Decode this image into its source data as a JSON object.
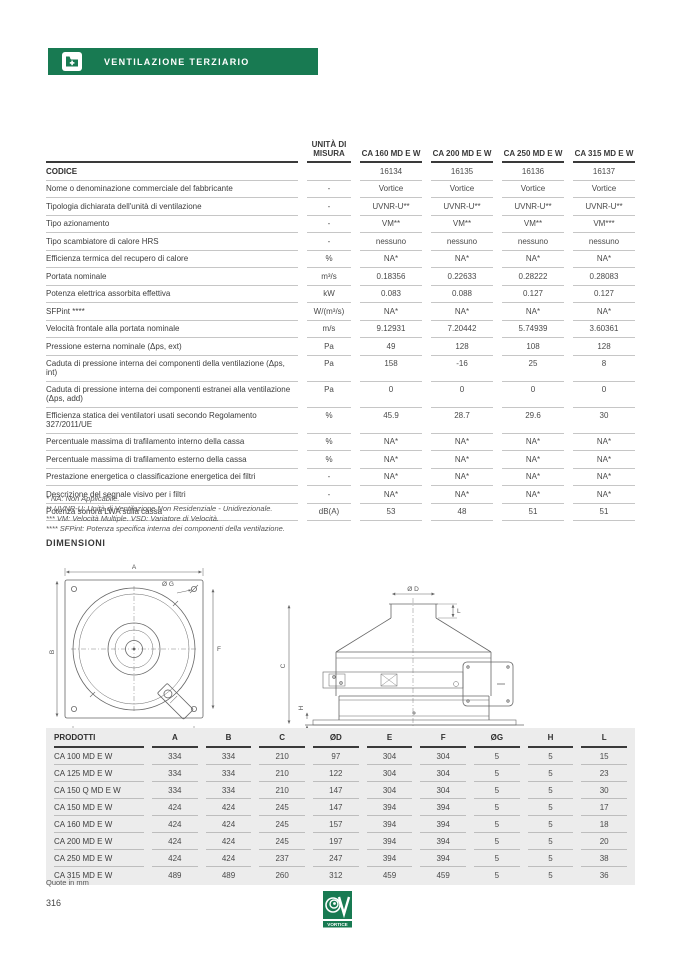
{
  "page": {
    "banner": {
      "title": "VENTILAZIONE TERZIARIO",
      "color": "#187a52"
    },
    "page_number": "316",
    "quote_note": "Quote in mm",
    "brand": "VORTICE"
  },
  "spec_table": {
    "unit_header": "UNITÀ DI MISURA",
    "products": [
      "CA 160 MD E W",
      "CA 200 MD E W",
      "CA 250 MD E W",
      "CA 315 MD E W"
    ],
    "rows": [
      {
        "label": "CODICE",
        "bold": true,
        "unit": "",
        "values": [
          "16134",
          "16135",
          "16136",
          "16137"
        ]
      },
      {
        "label": "Nome o denominazione commerciale del fabbricante",
        "unit": "-",
        "values": [
          "Vortice",
          "Vortice",
          "Vortice",
          "Vortice"
        ]
      },
      {
        "label": "Tipologia dichiarata dell'unità di ventilazione",
        "unit": "-",
        "values": [
          "UVNR-U**",
          "UVNR-U**",
          "UVNR-U**",
          "UVNR-U**"
        ]
      },
      {
        "label": "Tipo azionamento",
        "unit": "-",
        "values": [
          "VM**",
          "VM**",
          "VM**",
          "VM***"
        ]
      },
      {
        "label": "Tipo scambiatore di calore HRS",
        "unit": "-",
        "values": [
          "nessuno",
          "nessuno",
          "nessuno",
          "nessuno"
        ]
      },
      {
        "label": "Efficienza termica del recupero di calore",
        "unit": "%",
        "values": [
          "NA*",
          "NA*",
          "NA*",
          "NA*"
        ]
      },
      {
        "label": "Portata nominale",
        "unit": "m³/s",
        "values": [
          "0.18356",
          "0.22633",
          "0.28222",
          "0.28083"
        ]
      },
      {
        "label": "Potenza elettrica assorbita effettiva",
        "unit": "kW",
        "values": [
          "0.083",
          "0.088",
          "0.127",
          "0.127"
        ]
      },
      {
        "label": "SFPint ****",
        "unit": "W/(m³/s)",
        "values": [
          "NA*",
          "NA*",
          "NA*",
          "NA*"
        ]
      },
      {
        "label": "Velocità frontale alla portata nominale",
        "unit": "m/s",
        "values": [
          "9.12931",
          "7.20442",
          "5.74939",
          "3.60361"
        ]
      },
      {
        "label": "Pressione esterna nominale (Δps, ext)",
        "unit": "Pa",
        "values": [
          "49",
          "128",
          "108",
          "128"
        ]
      },
      {
        "label": "Caduta di pressione interna dei componenti della ventilazione (Δps, int)",
        "unit": "Pa",
        "values": [
          "158",
          "-16",
          "25",
          "8"
        ]
      },
      {
        "label": "Caduta di pressione interna dei componenti estranei alla  ventilazione (Δps, add)",
        "unit": "Pa",
        "values": [
          "0",
          "0",
          "0",
          "0"
        ]
      },
      {
        "label": "Efficienza statica dei ventilatori usati secondo Regolamento 327/2011/UE",
        "unit": "%",
        "values": [
          "45.9",
          "28.7",
          "29.6",
          "30"
        ]
      },
      {
        "label": "Percentuale massima di trafilamento interno della cassa",
        "unit": "%",
        "values": [
          "NA*",
          "NA*",
          "NA*",
          "NA*"
        ]
      },
      {
        "label": "Percentuale massima di trafilamento esterno della cassa",
        "unit": "%",
        "values": [
          "NA*",
          "NA*",
          "NA*",
          "NA*"
        ]
      },
      {
        "label": "Prestazione energetica o classificazione energetica dei filtri",
        "unit": "-",
        "values": [
          "NA*",
          "NA*",
          "NA*",
          "NA*"
        ]
      },
      {
        "label": "Descrizione del segnale visivo per i filtri",
        "unit": "-",
        "values": [
          "NA*",
          "NA*",
          "NA*",
          "NA*"
        ]
      },
      {
        "label": "Potenza sonora LWA sulla cassa",
        "unit": "dB(A)",
        "values": [
          "53",
          "48",
          "51",
          "51"
        ]
      }
    ],
    "footnotes": [
      "* NA: Non Applicabile.",
      "** UVNR-U: Unità di Ventilazione Non Residenziale - Unidirezionale.",
      "*** VM: Velocità Multiple. VSD: Variatore di Velocità.",
      "**** SFPint: Potenza specifica interna dei componenti della ventilazione."
    ]
  },
  "dimensions": {
    "heading": "DIMENSIONI",
    "labels": {
      "A": "A",
      "B": "B",
      "C": "C",
      "D": "Ø D",
      "E": "E",
      "F": "F",
      "G": "Ø G",
      "H": "H",
      "L": "L"
    }
  },
  "dim_table": {
    "headers": [
      "PRODOTTI",
      "A",
      "B",
      "C",
      "ØD",
      "E",
      "F",
      "ØG",
      "H",
      "L"
    ],
    "rows": [
      {
        "name": "CA 100 MD E W",
        "values": [
          "334",
          "334",
          "210",
          "97",
          "304",
          "304",
          "5",
          "5",
          "15"
        ]
      },
      {
        "name": "CA 125 MD E W",
        "values": [
          "334",
          "334",
          "210",
          "122",
          "304",
          "304",
          "5",
          "5",
          "23"
        ]
      },
      {
        "name": "CA 150 Q MD E W",
        "values": [
          "334",
          "334",
          "210",
          "147",
          "304",
          "304",
          "5",
          "5",
          "30"
        ]
      },
      {
        "name": "CA 150 MD E W",
        "values": [
          "424",
          "424",
          "245",
          "147",
          "394",
          "394",
          "5",
          "5",
          "17"
        ]
      },
      {
        "name": "CA 160 MD E W",
        "values": [
          "424",
          "424",
          "245",
          "157",
          "394",
          "394",
          "5",
          "5",
          "18"
        ]
      },
      {
        "name": "CA 200 MD E W",
        "values": [
          "424",
          "424",
          "245",
          "197",
          "394",
          "394",
          "5",
          "5",
          "20"
        ]
      },
      {
        "name": "CA 250 MD E W",
        "values": [
          "424",
          "424",
          "237",
          "247",
          "394",
          "394",
          "5",
          "5",
          "38"
        ]
      },
      {
        "name": "CA 315 MD E W",
        "values": [
          "489",
          "489",
          "260",
          "312",
          "459",
          "459",
          "5",
          "5",
          "36"
        ]
      }
    ]
  }
}
